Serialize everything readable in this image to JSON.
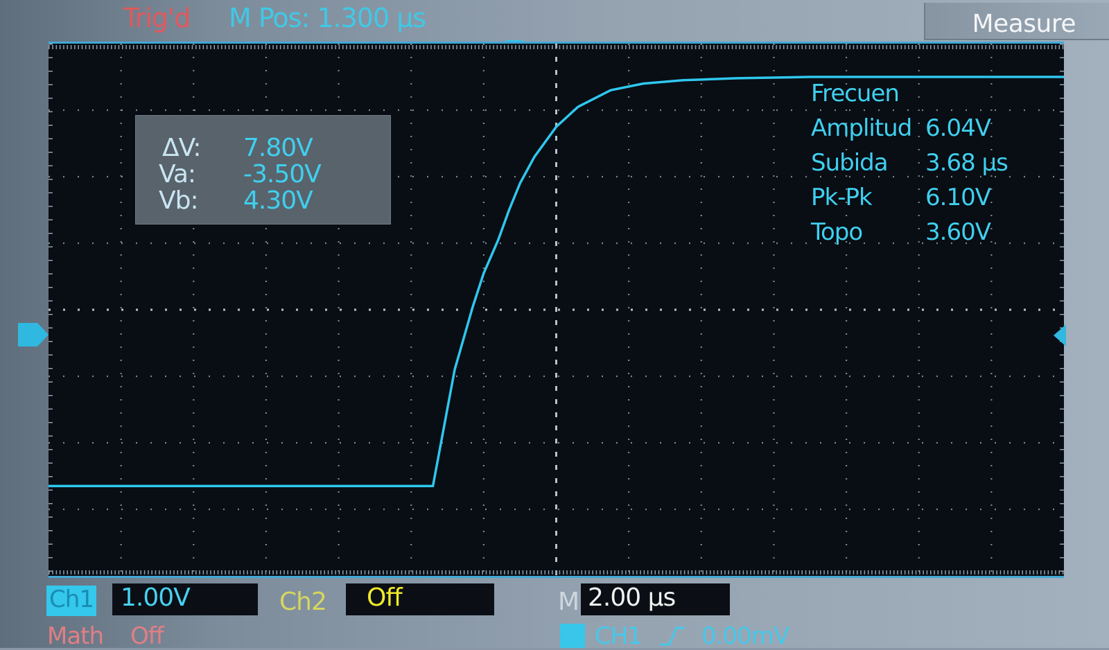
{
  "header": {
    "status": "Trig'd",
    "m_pos": "M Pos: 1.300 µs"
  },
  "menu": {
    "title": "Measure"
  },
  "cursor_readout": {
    "rows": [
      {
        "label": "ΔV:",
        "value": "7.80V"
      },
      {
        "label": "Va:",
        "value": "-3.50V"
      },
      {
        "label": "Vb:",
        "value": "4.30V"
      }
    ]
  },
  "measurements": [
    {
      "label": "Frecuen",
      "value": ""
    },
    {
      "label": "Amplitud",
      "value": "6.04V"
    },
    {
      "label": "Subida",
      "value": "3.68 µs"
    },
    {
      "label": "Pk-Pk",
      "value": "6.10V"
    },
    {
      "label": "Topo",
      "value": "3.60V"
    }
  ],
  "bottom_bar": {
    "ch1_tag": "Ch1",
    "ch1_scale": "1.00V",
    "ch2_label": "Ch2",
    "ch2_scale": "Off",
    "m_label": "M",
    "time_scale": "2.00 µs",
    "math_label": "Math",
    "math_state": "Off",
    "trig_source": "CH1",
    "trig_level": "0.00mV"
  },
  "icons": {
    "ch1_marker": "ch1-level-arrow-icon",
    "trigger_level": "trigger-level-arrow-icon",
    "trigger_position": "trigger-position-arrow-icon",
    "trigger_slope": "rising-edge-icon"
  },
  "colors": {
    "ch1": "#33c8ec",
    "ch2": "#f0ea2a",
    "status": "#e0595d",
    "math": "#e27e85"
  },
  "chart_data": {
    "type": "line",
    "grid": "on",
    "divisions_x": 14,
    "divisions_y": 8,
    "time_per_div_us": 2.0,
    "volts_per_div": 1.0,
    "series": [
      {
        "x": [
          -14.0,
          -8.0,
          -3.4,
          -2.8,
          -2.3,
          -2.0,
          -1.6,
          -1.3,
          -1.0,
          -0.6,
          0.0,
          0.6,
          1.5,
          2.4,
          3.5,
          5.0,
          7.0,
          9.0,
          12.0,
          14.0
        ],
        "y": [
          -2.65,
          -2.65,
          -2.65,
          -0.9,
          0.05,
          0.55,
          1.05,
          1.5,
          1.9,
          2.3,
          2.75,
          3.05,
          3.3,
          3.4,
          3.45,
          3.48,
          3.5,
          3.5,
          3.5,
          3.5
        ]
      }
    ],
    "xlim": [
      -14.0,
      14.0
    ],
    "ylim": [
      -4.0,
      4.0
    ]
  }
}
